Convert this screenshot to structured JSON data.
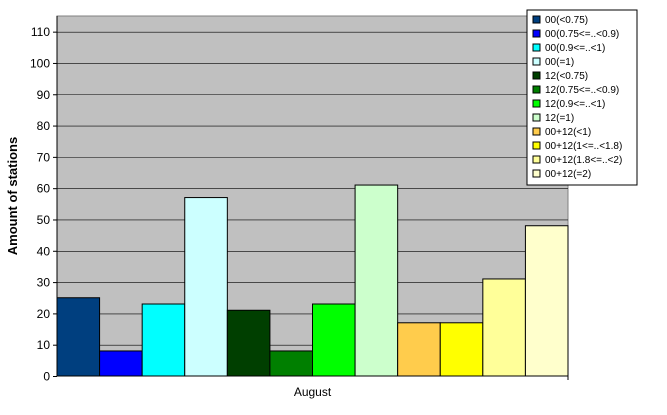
{
  "chart_data": {
    "type": "bar",
    "title": "",
    "xlabel": "",
    "ylabel": "Amount of stations",
    "categories": [
      "August"
    ],
    "ylim": [
      0,
      115
    ],
    "yticks": [
      0,
      10,
      20,
      30,
      40,
      50,
      60,
      70,
      80,
      90,
      100,
      110
    ],
    "grid": true,
    "legend_position": "top-right",
    "plot_background": "#c0c0c0",
    "series": [
      {
        "name": "00(<0.75)",
        "values": [
          25
        ],
        "color": "#003f7f"
      },
      {
        "name": "00(0.75<=..<0.9)",
        "values": [
          8
        ],
        "color": "#0000ff"
      },
      {
        "name": "00(0.9<=..<1)",
        "values": [
          23
        ],
        "color": "#00ffff"
      },
      {
        "name": "00(=1)",
        "values": [
          57
        ],
        "color": "#ccffff"
      },
      {
        "name": "12(<0.75)",
        "values": [
          21
        ],
        "color": "#003f00"
      },
      {
        "name": "12(0.75<=..<0.9)",
        "values": [
          8
        ],
        "color": "#007f00"
      },
      {
        "name": "12(0.9<=..<1)",
        "values": [
          23
        ],
        "color": "#00ff00"
      },
      {
        "name": "12(=1)",
        "values": [
          61
        ],
        "color": "#ccffcc"
      },
      {
        "name": "00+12(<1)",
        "values": [
          17
        ],
        "color": "#ffcc4c"
      },
      {
        "name": "00+12(1<=..<1.8)",
        "values": [
          17
        ],
        "color": "#ffff00"
      },
      {
        "name": "00+12(1.8<=..<2)",
        "values": [
          31
        ],
        "color": "#ffff99"
      },
      {
        "name": "00+12(=2)",
        "values": [
          48
        ],
        "color": "#ffffcc"
      }
    ]
  }
}
